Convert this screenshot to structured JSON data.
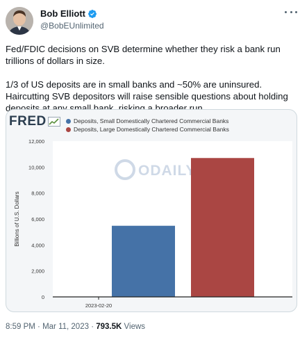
{
  "author": {
    "display_name": "Bob Elliott",
    "handle": "@BobEUnlimited",
    "verified_icon": "verified-badge-icon",
    "avatar_icon": "avatar-photo"
  },
  "tweet": {
    "paragraphs": [
      "Fed/FDIC decisions on SVB determine whether they risk a bank run trillions of dollars in size.",
      "1/3 of US deposits are in small banks and ~50% are uninsured. Haircutting SVB depositors will raise sensible questions about holding deposits at any small bank, risking a broader run."
    ]
  },
  "media": {
    "logo_text": "FRED",
    "watermark": "ODAILY"
  },
  "chart_data": {
    "type": "bar",
    "categories": [
      "2023-02-20"
    ],
    "series": [
      {
        "name": "Deposits, Small Domestically Chartered Commercial Banks",
        "values": [
          5480
        ],
        "color": "#4572a7"
      },
      {
        "name": "Deposits, Large Domestically Chartered Commercial Banks",
        "values": [
          10700
        ],
        "color": "#aa4643"
      }
    ],
    "ylabel": "Billions of U.S. Dollars",
    "ylim": [
      0,
      12000
    ],
    "yticks": [
      0,
      2000,
      4000,
      6000,
      8000,
      10000,
      12000
    ],
    "ytick_labels": [
      "0",
      "2,000",
      "4,000",
      "6,000",
      "8,000",
      "10,000",
      "12,000"
    ],
    "xtick_label": "2023-02-20",
    "legend_position": "top",
    "grid": false
  },
  "footer": {
    "time": "8:59 PM",
    "separator": "·",
    "date": "Mar 11, 2023",
    "views_count": "793.5K",
    "views_label": "Views"
  }
}
